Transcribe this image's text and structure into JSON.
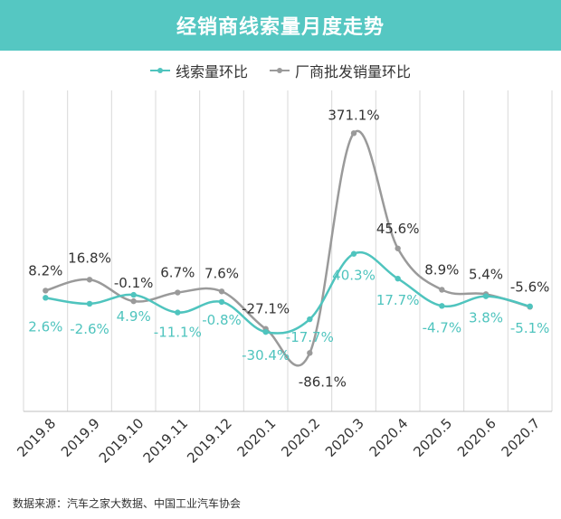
{
  "header": {
    "title": "经销商线索量月度走势"
  },
  "colors": {
    "header_bg": "#55c7c2",
    "series1": "#4fc4be",
    "series2": "#9a9a9a",
    "grid": "#d9d9d9",
    "text": "#333333"
  },
  "source": "数据来源：汽车之家大数据、中国工业汽车协会",
  "chart_data": {
    "type": "line",
    "title": "经销商线索量月度走势",
    "categories": [
      "2019.8",
      "2019.9",
      "2019.10",
      "2019.11",
      "2019.12",
      "2020.1",
      "2020.2",
      "2020.3",
      "2020.4",
      "2020.5",
      "2020.6",
      "2020.7"
    ],
    "series": [
      {
        "name": "线索量环比",
        "values": [
          2.6,
          -2.6,
          4.9,
          -11.1,
          -0.8,
          -30.4,
          -17.7,
          40.3,
          17.7,
          -4.7,
          3.8,
          -5.1
        ],
        "labels": [
          "2.6%",
          "-2.6%",
          "4.9%",
          "-11.1%",
          "-0.8%",
          "-30.4%",
          "-17.7%",
          "40.3%",
          "17.7%",
          "-4.7%",
          "3.8%",
          "-5.1%"
        ]
      },
      {
        "name": "厂商批发销量环比",
        "values": [
          8.2,
          16.8,
          -0.1,
          6.7,
          7.6,
          -27.1,
          -86.1,
          371.1,
          45.6,
          8.9,
          5.4,
          -5.6
        ],
        "labels": [
          "8.2%",
          "16.8%",
          "-0.1%",
          "6.7%",
          "7.6%",
          "-27.1%",
          "-86.1%",
          "371.1%",
          "45.6%",
          "8.9%",
          "5.4%",
          "-5.6%"
        ]
      }
    ],
    "legend_position": "top-center",
    "grid": "vertical"
  }
}
